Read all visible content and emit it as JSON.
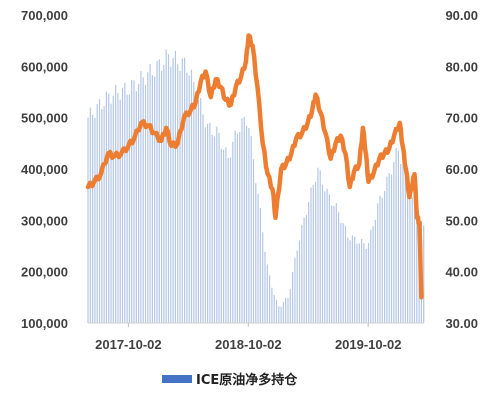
{
  "chart_data": {
    "type": "bar+line",
    "title": "",
    "x_tick_labels": [
      "2017-10-02",
      "2018-10-02",
      "2019-10-02"
    ],
    "x_range": [
      "2017-06-01",
      "2020-03-20"
    ],
    "y_left": {
      "min": 100000,
      "max": 700000,
      "ticks": [
        "100,000",
        "200,000",
        "300,000",
        "400,000",
        "500,000",
        "600,000",
        "700,000"
      ]
    },
    "y_right": {
      "min": 30,
      "max": 90,
      "ticks": [
        "30.00",
        "40.00",
        "50.00",
        "60.00",
        "70.00",
        "80.00",
        "90.00"
      ]
    },
    "grid": false,
    "legend": {
      "position": "bottom",
      "entries": [
        {
          "label": "ICE原油净多持仓",
          "color": "#4472C4"
        }
      ]
    },
    "series": [
      {
        "name": "ICE原油净多持仓",
        "kind": "bar",
        "axis": "left",
        "color": "#B4C7E7",
        "points": [
          [
            "2017-06-01",
            500000
          ],
          [
            "2017-07-01",
            520000
          ],
          [
            "2017-08-01",
            540000
          ],
          [
            "2017-09-01",
            550000
          ],
          [
            "2017-10-01",
            555000
          ],
          [
            "2017-11-01",
            570000
          ],
          [
            "2017-12-01",
            585000
          ],
          [
            "2018-01-01",
            600000
          ],
          [
            "2018-02-01",
            620000
          ],
          [
            "2018-03-01",
            610000
          ],
          [
            "2018-04-01",
            600000
          ],
          [
            "2018-05-01",
            540000
          ],
          [
            "2018-06-01",
            480000
          ],
          [
            "2018-07-01",
            470000
          ],
          [
            "2018-08-01",
            420000
          ],
          [
            "2018-09-01",
            480000
          ],
          [
            "2018-10-01",
            500000
          ],
          [
            "2018-11-01",
            350000
          ],
          [
            "2018-12-01",
            200000
          ],
          [
            "2019-01-01",
            130000
          ],
          [
            "2019-02-01",
            150000
          ],
          [
            "2019-03-01",
            250000
          ],
          [
            "2019-04-01",
            330000
          ],
          [
            "2019-05-01",
            400000
          ],
          [
            "2019-06-01",
            350000
          ],
          [
            "2019-07-01",
            320000
          ],
          [
            "2019-08-01",
            270000
          ],
          [
            "2019-09-01",
            260000
          ],
          [
            "2019-10-01",
            250000
          ],
          [
            "2019-11-01",
            330000
          ],
          [
            "2019-12-01",
            380000
          ],
          [
            "2020-01-01",
            440000
          ],
          [
            "2020-02-01",
            370000
          ],
          [
            "2020-03-01",
            290000
          ]
        ]
      },
      {
        "name": "",
        "kind": "line",
        "axis": "right",
        "color": "#ED7D31",
        "points": [
          [
            "2017-06-01",
            56.5
          ],
          [
            "2017-06-20",
            57.5
          ],
          [
            "2017-07-10",
            59
          ],
          [
            "2017-08-01",
            63
          ],
          [
            "2017-08-20",
            62.5
          ],
          [
            "2017-09-10",
            63
          ],
          [
            "2017-10-02",
            64.5
          ],
          [
            "2017-10-20",
            66
          ],
          [
            "2017-11-10",
            69
          ],
          [
            "2017-12-01",
            68.5
          ],
          [
            "2017-12-20",
            67
          ],
          [
            "2018-01-10",
            65.5
          ],
          [
            "2018-01-25",
            68
          ],
          [
            "2018-02-10",
            64.5
          ],
          [
            "2018-03-01",
            65
          ],
          [
            "2018-03-20",
            70
          ],
          [
            "2018-04-10",
            71.5
          ],
          [
            "2018-04-25",
            73
          ],
          [
            "2018-05-10",
            77
          ],
          [
            "2018-05-25",
            79
          ],
          [
            "2018-06-10",
            74
          ],
          [
            "2018-06-25",
            77.5
          ],
          [
            "2018-07-10",
            76
          ],
          [
            "2018-07-25",
            73.5
          ],
          [
            "2018-08-10",
            72.5
          ],
          [
            "2018-08-25",
            76
          ],
          [
            "2018-09-10",
            78
          ],
          [
            "2018-09-25",
            81
          ],
          [
            "2018-10-03",
            86
          ],
          [
            "2018-10-15",
            84
          ],
          [
            "2018-10-30",
            76
          ],
          [
            "2018-11-15",
            65
          ],
          [
            "2018-11-30",
            59
          ],
          [
            "2018-12-15",
            56
          ],
          [
            "2018-12-24",
            50.5
          ],
          [
            "2019-01-10",
            60
          ],
          [
            "2019-01-25",
            61
          ],
          [
            "2019-02-10",
            63
          ],
          [
            "2019-02-25",
            66
          ],
          [
            "2019-03-15",
            67
          ],
          [
            "2019-04-01",
            69
          ],
          [
            "2019-04-15",
            71.5
          ],
          [
            "2019-04-25",
            74.5
          ],
          [
            "2019-05-10",
            71
          ],
          [
            "2019-05-25",
            67
          ],
          [
            "2019-06-10",
            62
          ],
          [
            "2019-06-25",
            65
          ],
          [
            "2019-07-10",
            66.5
          ],
          [
            "2019-07-25",
            63
          ],
          [
            "2019-08-07",
            56.5
          ],
          [
            "2019-08-20",
            59.5
          ],
          [
            "2019-09-05",
            61
          ],
          [
            "2019-09-16",
            68
          ],
          [
            "2019-09-25",
            63
          ],
          [
            "2019-10-03",
            57.5
          ],
          [
            "2019-10-20",
            59.5
          ],
          [
            "2019-11-05",
            62
          ],
          [
            "2019-11-20",
            63
          ],
          [
            "2019-12-05",
            64
          ],
          [
            "2019-12-20",
            66.5
          ],
          [
            "2020-01-06",
            69
          ],
          [
            "2020-01-15",
            64.5
          ],
          [
            "2020-01-25",
            60
          ],
          [
            "2020-02-05",
            54.5
          ],
          [
            "2020-02-15",
            57.5
          ],
          [
            "2020-02-20",
            59
          ],
          [
            "2020-02-28",
            50.5
          ],
          [
            "2020-03-06",
            49.5
          ],
          [
            "2020-03-12",
            35
          ]
        ]
      }
    ]
  }
}
